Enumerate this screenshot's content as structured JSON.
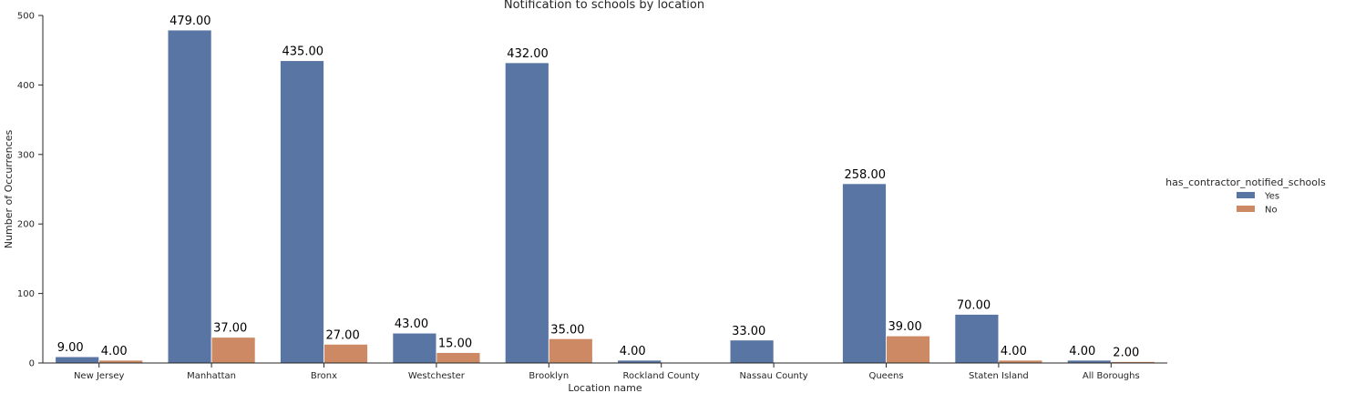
{
  "chart_data": {
    "type": "bar",
    "title": "Notification to schools by location",
    "xlabel": "Location name",
    "ylabel": "Number of Occurrences",
    "ylim": [
      0,
      500
    ],
    "yticks": [
      0,
      100,
      200,
      300,
      400,
      500
    ],
    "grid": false,
    "legend": {
      "title": "has_contractor_notified_schools",
      "placement": "right"
    },
    "categories": [
      "New Jersey",
      "Manhattan",
      "Bronx",
      "Westchester",
      "Brooklyn",
      "Rockland County",
      "Nassau County",
      "Queens",
      "Staten Island",
      "All Boroughs"
    ],
    "series": [
      {
        "name": "Yes",
        "color": "#5975a4",
        "values": [
          9,
          479,
          435,
          43,
          432,
          4,
          33,
          258,
          70,
          4
        ]
      },
      {
        "name": "No",
        "color": "#cc8963",
        "values": [
          4,
          37,
          27,
          15,
          35,
          null,
          null,
          39,
          4,
          2
        ]
      }
    ],
    "data_labels": [
      [
        "9.00",
        "479.00",
        "435.00",
        "43.00",
        "432.00",
        "4.00",
        "33.00",
        "258.00",
        "70.00",
        "4.00"
      ],
      [
        "4.00",
        "37.00",
        "27.00",
        "15.00",
        "35.00",
        null,
        null,
        "39.00",
        "4.00",
        "2.00"
      ]
    ]
  }
}
